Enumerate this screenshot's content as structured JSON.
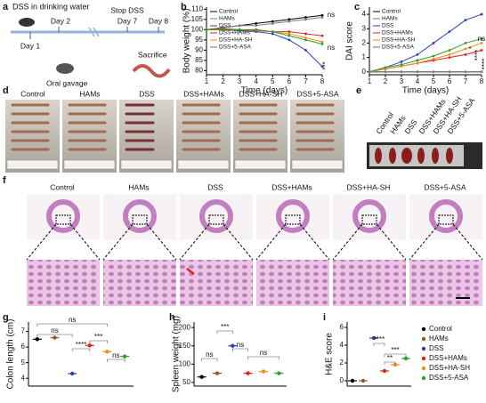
{
  "panel_labels": [
    "a",
    "b",
    "c",
    "d",
    "e",
    "f",
    "g",
    "h",
    "i"
  ],
  "schematic": {
    "title": "DSS in drinking water",
    "days": [
      "Day 1",
      "Day 2",
      "Day 7",
      "Day 8"
    ],
    "stop": "Stop DSS",
    "gavage": "Oral gavage",
    "sacrifice": "Sacrifice"
  },
  "colon_photos": {
    "groups": [
      "Control",
      "HAMs",
      "DSS",
      "DSS+HAMs",
      "DSS+HA-SH",
      "DSS+5-ASA"
    ]
  },
  "spleen_photos": {
    "groups": [
      "Control",
      "HAMs",
      "DSS",
      "DSS+HAMs",
      "DSS+HA-SH",
      "DSS+5-ASA"
    ]
  },
  "histology": {
    "groups": [
      "Control",
      "HAMs",
      "DSS",
      "DSS+HAMs",
      "DSS+HA-SH",
      "DSS+5-ASA"
    ]
  },
  "chart_data": [
    {
      "type": "line",
      "xlabel": "Time (days)",
      "ylabel": "Body weight (%)",
      "x": [
        1,
        2,
        3,
        4,
        5,
        6,
        7,
        8
      ],
      "xlim": [
        1,
        8
      ],
      "xticks": [
        1,
        2,
        3,
        4,
        5,
        6,
        7,
        8
      ],
      "ylim": [
        78,
        111
      ],
      "yticks": [
        80,
        85,
        90,
        95,
        100,
        105,
        110
      ],
      "legend": "upper left",
      "series": [
        {
          "name": "Control",
          "color": "#000000",
          "values": [
            100,
            101,
            102,
            103,
            104,
            105,
            106,
            107
          ]
        },
        {
          "name": "HAMs",
          "color": "#7f7f7f",
          "values": [
            100,
            101,
            102,
            102,
            103,
            104,
            105,
            106
          ]
        },
        {
          "name": "DSS",
          "color": "#2a3fbf",
          "values": [
            100,
            100,
            99.5,
            99,
            98,
            95,
            90,
            82
          ]
        },
        {
          "name": "DSS+HAMs",
          "color": "#e0201b",
          "values": [
            100,
            100.5,
            100,
            100,
            99,
            99,
            98,
            97
          ]
        },
        {
          "name": "DSS+HA-SH",
          "color": "#f28c1a",
          "values": [
            100,
            100,
            100,
            99.5,
            99,
            98,
            96,
            94
          ]
        },
        {
          "name": "DSS+5-ASA",
          "color": "#2ca02c",
          "values": [
            100,
            100,
            100,
            99.5,
            99,
            97,
            95,
            93
          ]
        }
      ],
      "annotations": [
        "ns",
        "ns",
        "***"
      ]
    },
    {
      "type": "line",
      "xlabel": "Time (days)",
      "ylabel": "DAI score",
      "x": [
        1,
        2,
        3,
        4,
        5,
        6,
        7,
        8
      ],
      "xlim": [
        1,
        8
      ],
      "xticks": [
        1,
        2,
        3,
        4,
        5,
        6,
        7,
        8
      ],
      "ylim": [
        -0.2,
        4.5
      ],
      "yticks": [
        0,
        1,
        2,
        3,
        4
      ],
      "legend": "upper left",
      "series": [
        {
          "name": "Control",
          "color": "#000000",
          "values": [
            0,
            0,
            0,
            0,
            0,
            0,
            0,
            0
          ]
        },
        {
          "name": "HAMs",
          "color": "#7f7f7f",
          "values": [
            0,
            0,
            0,
            0,
            0,
            0,
            0,
            0
          ]
        },
        {
          "name": "DSS",
          "color": "#2a3fbf",
          "values": [
            0,
            0.3,
            0.7,
            1.2,
            2,
            2.8,
            3.6,
            4
          ]
        },
        {
          "name": "DSS+HAMs",
          "color": "#e0201b",
          "values": [
            0,
            0.2,
            0.4,
            0.6,
            0.8,
            1,
            1.2,
            1.5
          ]
        },
        {
          "name": "DSS+HA-SH",
          "color": "#f28c1a",
          "values": [
            0,
            0.2,
            0.4,
            0.6,
            0.9,
            1.2,
            1.6,
            2
          ]
        },
        {
          "name": "DSS+5-ASA",
          "color": "#2ca02c",
          "values": [
            0,
            0.3,
            0.5,
            0.8,
            1.1,
            1.5,
            2,
            2.3
          ]
        }
      ],
      "annotations": [
        "ns",
        "*",
        "****",
        "****"
      ]
    },
    {
      "type": "dot",
      "ylabel": "Colon length (cm)",
      "categories": [
        null,
        null,
        null,
        null,
        null,
        null
      ],
      "values": [
        6.5,
        6.6,
        4.3,
        6.1,
        5.7,
        5.4
      ],
      "colors": [
        "#000000",
        "#8b5a2b",
        "#2a3fbf",
        "#e0201b",
        "#f28c1a",
        "#2ca02c"
      ],
      "ylim": [
        3.5,
        7.6
      ],
      "yticks": [
        4,
        5,
        6,
        7
      ],
      "annotations": [
        "ns",
        "ns",
        "****",
        "***",
        "ns"
      ]
    },
    {
      "type": "dot",
      "ylabel": "Spleen weight (mg)",
      "categories": [
        null,
        null,
        null,
        null,
        null,
        null
      ],
      "values": [
        65,
        75,
        150,
        75,
        80,
        75
      ],
      "colors": [
        "#000000",
        "#8b5a2b",
        "#2a3fbf",
        "#e0201b",
        "#f28c1a",
        "#2ca02c"
      ],
      "ylim": [
        40,
        215
      ],
      "yticks": [
        50,
        100,
        150,
        200
      ],
      "annotations": [
        "ns",
        "***",
        "ns",
        "ns"
      ]
    },
    {
      "type": "dot",
      "ylabel": "H&E  score",
      "legend": "right",
      "series": [
        {
          "name": "Control",
          "color": "#000000",
          "values": [
            0
          ]
        },
        {
          "name": "HAMs",
          "color": "#8b5a2b",
          "values": [
            0
          ]
        },
        {
          "name": "DSS",
          "color": "#2a3fbf",
          "values": [
            4.8
          ]
        },
        {
          "name": "DSS+HAMs",
          "color": "#e0201b",
          "values": [
            1.1
          ]
        },
        {
          "name": "DSS+HA-SH",
          "color": "#f28c1a",
          "values": [
            1.8
          ]
        },
        {
          "name": "DSS+5-ASA",
          "color": "#2ca02c",
          "values": [
            2.5
          ]
        }
      ],
      "ylim": [
        -0.6,
        6.6
      ],
      "yticks": [
        0,
        2,
        4,
        6
      ],
      "annotations": [
        "****",
        "**",
        "***"
      ]
    }
  ]
}
